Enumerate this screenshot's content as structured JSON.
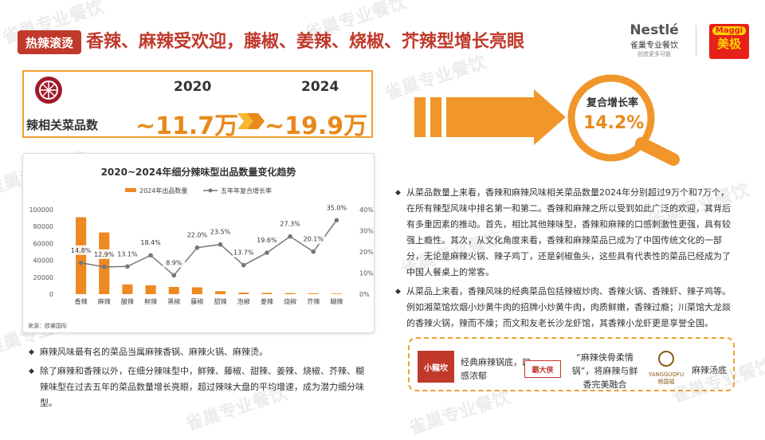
{
  "header": {
    "badge": "热辣滚烫",
    "title": "香辣、麻辣受欢迎，藤椒、姜辣、烧椒、芥辣型增长亮眼"
  },
  "logos": {
    "nestle_name": "Nestlé",
    "nestle_sub": "雀巢专业餐饮",
    "nestle_tagline": "创造更多可能",
    "maggi_name": "Maggi",
    "maggi_cn": "美极"
  },
  "stat": {
    "label": "辣相关菜品数",
    "year_start": "2020",
    "year_end": "2024",
    "value_start": "~11.7万",
    "value_end": "~19.9万"
  },
  "cagr": {
    "label": "复合增长率",
    "value": "14.2%"
  },
  "chart_data": {
    "type": "bar",
    "title": "2020~2024年细分辣味型出品数量变化趋势",
    "legend": [
      "2024年出品数量",
      "五年年复合增长率"
    ],
    "categories": [
      "香辣",
      "麻辣",
      "酸辣",
      "鲜辣",
      "黑椒",
      "藤椒",
      "甜辣",
      "泡椒",
      "姜辣",
      "烧椒",
      "芥辣",
      "糊辣"
    ],
    "series": [
      {
        "name": "2024年出品数量",
        "values": [
          91000,
          73000,
          11500,
          10500,
          8500,
          8000,
          3500,
          1800,
          1500,
          1200,
          900,
          700
        ]
      },
      {
        "name": "五年年复合增长率",
        "values": [
          14.8,
          12.9,
          13.1,
          18.4,
          8.9,
          22.0,
          23.5,
          13.7,
          19.6,
          27.3,
          20.1,
          35.0
        ]
      }
    ],
    "y_left_ticks": [
      "0",
      "20000",
      "40000",
      "60000",
      "80000",
      "100000"
    ],
    "y_right_ticks": [
      "0%",
      "10%",
      "20%",
      "30%",
      "40%"
    ],
    "ylim_left": [
      0,
      100000
    ],
    "ylim_right": [
      0,
      40
    ],
    "source": "来源：欧睿国际",
    "colors": {
      "bar": "#ee8822",
      "line": "#777777"
    }
  },
  "bullets_right": [
    "从菜品数量上来看，香辣和麻辣风味相关菜品数量2024年分别超过9万个和7万个，在所有辣型风味中排名第一和第二。香辣和麻辣之所以受到如此广泛的欢迎，其背后有多重因素的推动。首先，相比其他辣味型，香辣和麻辣的口感刺激性更强，具有较强上瘾性。其次，从文化角度来看，香辣和麻辣菜品已成为了中国传统文化的一部分，无论是麻辣火锅、辣子鸡丁，还是剁椒鱼头，这些具有代表性的菜品已经成为了中国人餐桌上的常客。",
    "从菜品上来看，香辣风味的经典菜品包括辣椒炒肉、香辣火锅、香辣虾、辣子鸡等。例如湘菜馆炊烟小炒黄牛肉的招牌小炒黄牛肉，肉质鲜嫩，香辣过瘾；川菜馆大龙燚的香辣火锅，辣而不燥；而文和友老长沙龙虾馆，其香辣小龙虾更是享誉全国。"
  ],
  "bullets_left": [
    "麻辣风味最有名的菜品当属麻辣香锅、麻辣火锅、麻辣烫。",
    "除了麻辣和香辣以外，在细分辣味型中，鲜辣、藤椒、甜辣、姜辣、烧椒、芥辣、糊辣味型在过去五年的菜品数量增长亮眼，超过辣味大盘的平均增速，成为潜力细分味型。"
  ],
  "dishes": [
    {
      "logo": "小龍坎",
      "text": "经典麻辣锅底，口感浓郁"
    },
    {
      "logo": "霸大侠",
      "text": "“麻辣侠骨柔情锅”，将麻辣与鲜香完美融合"
    },
    {
      "logo": "YANGGUOFU 杨国福",
      "text": "麻辣汤底"
    }
  ],
  "watermark": "雀巢专业餐饮"
}
